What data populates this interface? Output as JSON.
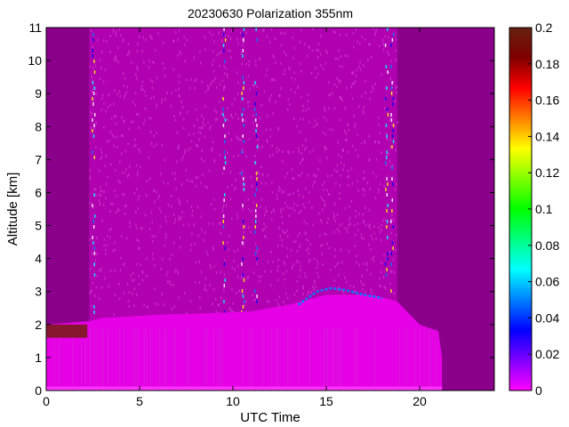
{
  "chart_data": {
    "type": "heatmap",
    "title": "20230630 Polarization 355nm",
    "xlabel": "UTC Time",
    "ylabel": "Altitude [km]",
    "xlim": [
      0,
      24
    ],
    "ylim": [
      0,
      11
    ],
    "xticks": [
      0,
      5,
      10,
      15,
      20
    ],
    "yticks": [
      0,
      1,
      2,
      3,
      4,
      5,
      6,
      7,
      8,
      9,
      10,
      11
    ],
    "colorbar": {
      "range": [
        0,
        0.2
      ],
      "ticks": [
        0,
        0.02,
        0.04,
        0.06,
        0.08,
        0.1,
        0.12,
        0.14,
        0.16,
        0.18,
        0.2
      ],
      "colors": [
        "#ff00ff",
        "#8000ff",
        "#0000ff",
        "#0080ff",
        "#00ffff",
        "#00ff80",
        "#00ff00",
        "#80ff00",
        "#ffff00",
        "#ff8000",
        "#ff0000",
        "#800000",
        "#662211"
      ]
    },
    "colors": {
      "no_data": "#8a008a",
      "background_layer": "#b000b0",
      "boundary_layer": "#e600e6",
      "speckle": "#cc33cc",
      "near_zero_band": "#ff33ff",
      "elevated_layer_edge": "#0080ff",
      "low_cloud": "#7a1a1a"
    },
    "features": {
      "data_window_utc": [
        2.3,
        18.8
      ],
      "boundary_layer_top_km": [
        [
          0,
          2.0
        ],
        [
          2.3,
          2.1
        ],
        [
          3,
          2.2
        ],
        [
          6,
          2.3
        ],
        [
          9,
          2.35
        ],
        [
          11,
          2.4
        ],
        [
          13,
          2.6
        ],
        [
          15,
          2.9
        ],
        [
          17.5,
          2.9
        ],
        [
          18.8,
          2.7
        ],
        [
          20,
          2.0
        ],
        [
          21,
          1.8
        ],
        [
          21.2,
          1.0
        ]
      ],
      "elevated_layer_km": [
        [
          13.5,
          2.6
        ],
        [
          14,
          2.8
        ],
        [
          14.5,
          3.0
        ],
        [
          15.2,
          3.1
        ],
        [
          16,
          3.05
        ],
        [
          17,
          2.9
        ],
        [
          18,
          2.8
        ]
      ],
      "low_cloud": {
        "utc": [
          0,
          2.2
        ],
        "altitude_km": [
          1.6,
          2.0
        ]
      },
      "vertical_streak_utc": [
        2.5,
        9.5,
        10.5,
        11.2,
        18.2,
        18.5
      ]
    }
  }
}
